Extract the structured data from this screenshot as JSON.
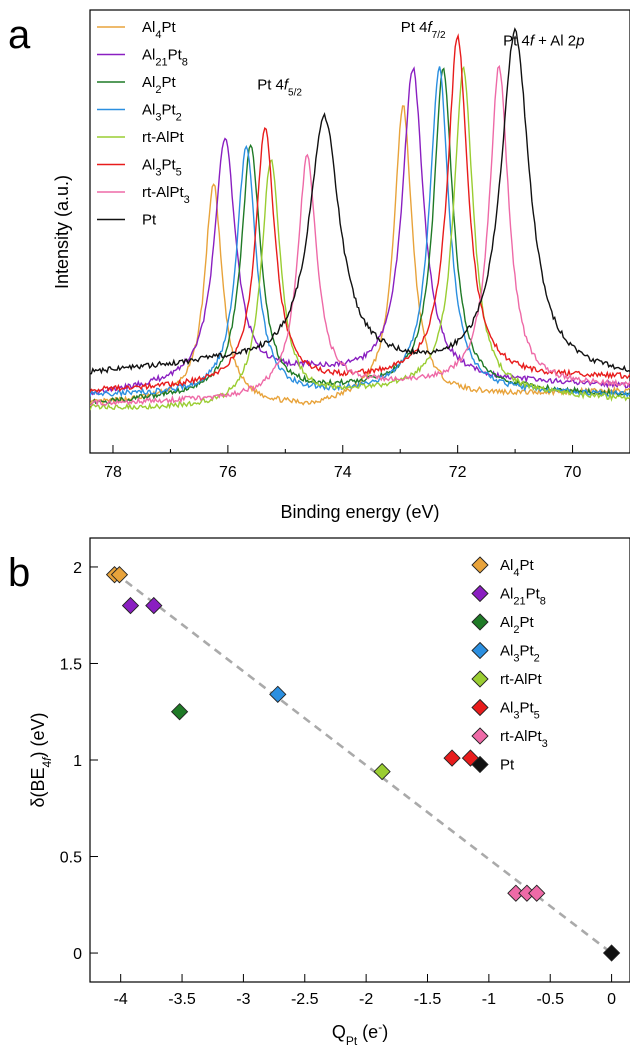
{
  "chart_data": [
    {
      "panel": "a",
      "type": "line",
      "title": "",
      "xlabel": "Binding energy (eV)",
      "ylabel": "Intensity (a.u.)",
      "xlim": [
        78.4,
        69.0
      ],
      "x_reversed": true,
      "xticks": [
        78,
        76,
        74,
        72,
        70
      ],
      "y_units": "normalized intensity (0 = bottom of frame, 1 = top of frame)",
      "grid": false,
      "legend_position": "top-left",
      "annotations": [
        {
          "text": "Pt 4f + Al 2p",
          "base": "Pt 4",
          "italic": "f",
          "rest": " + Al 2",
          "italic2": "p",
          "x": 70.5,
          "y": 0.92
        },
        {
          "text": "Pt 4f5/2",
          "base": "Pt 4",
          "italic": "f",
          "sub": "5/2",
          "x": 75.1,
          "y": 0.82
        },
        {
          "text": "Pt 4f7/2",
          "base": "Pt 4",
          "italic": "f",
          "sub": "7/2",
          "x": 72.6,
          "y": 0.95
        }
      ],
      "series": [
        {
          "name": "Al4Pt",
          "base": "Al",
          "s1": "4",
          "mid": "Pt",
          "s2": "",
          "color": "#e8a33b",
          "peaks": [
            {
              "x": 76.25,
              "h": 0.49,
              "w": 0.18
            },
            {
              "x": 72.95,
              "h": 0.66,
              "w": 0.19
            }
          ],
          "baseline": [
            [
              78.4,
              0.11
            ],
            [
              76.8,
              0.12
            ],
            [
              74.6,
              0.1
            ],
            [
              73.6,
              0.12
            ],
            [
              69.0,
              0.14
            ]
          ]
        },
        {
          "name": "Al21Pt8",
          "base": "Al",
          "s1": "21",
          "mid": "Pt",
          "s2": "8",
          "color": "#8a1fc1",
          "peaks": [
            {
              "x": 76.05,
              "h": 0.55,
              "w": 0.22
            },
            {
              "x": 72.78,
              "h": 0.7,
              "w": 0.22
            }
          ],
          "baseline": [
            [
              78.4,
              0.13
            ],
            [
              77.0,
              0.15
            ],
            [
              74.6,
              0.18
            ],
            [
              73.6,
              0.17
            ],
            [
              69.0,
              0.15
            ]
          ]
        },
        {
          "name": "Al2Pt",
          "base": "Al",
          "s1": "2",
          "mid": "Pt",
          "s2": "",
          "color": "#1f7a26",
          "peaks": [
            {
              "x": 75.6,
              "h": 0.56,
              "w": 0.2
            },
            {
              "x": 72.25,
              "h": 0.72,
              "w": 0.2
            }
          ],
          "baseline": [
            [
              78.4,
              0.11
            ],
            [
              76.4,
              0.13
            ],
            [
              74.2,
              0.14
            ],
            [
              73.0,
              0.15
            ],
            [
              69.0,
              0.13
            ]
          ]
        },
        {
          "name": "Al3Pt2",
          "base": "Al",
          "s1": "3",
          "mid": "Pt",
          "s2": "2",
          "color": "#2b8fe0",
          "peaks": [
            {
              "x": 75.68,
              "h": 0.56,
              "w": 0.2
            },
            {
              "x": 72.32,
              "h": 0.73,
              "w": 0.2
            }
          ],
          "baseline": [
            [
              78.4,
              0.13
            ],
            [
              76.4,
              0.13
            ],
            [
              74.2,
              0.13
            ],
            [
              73.0,
              0.14
            ],
            [
              69.0,
              0.13
            ]
          ]
        },
        {
          "name": "rt-AlPt",
          "base": "rt-AlPt",
          "s1": "",
          "mid": "",
          "s2": "",
          "color": "#9acd32",
          "peaks": [
            {
              "x": 75.25,
              "h": 0.55,
              "w": 0.2
            },
            {
              "x": 71.9,
              "h": 0.73,
              "w": 0.2
            }
          ],
          "baseline": [
            [
              78.4,
              0.1
            ],
            [
              76.0,
              0.1
            ],
            [
              74.0,
              0.13
            ],
            [
              72.8,
              0.14
            ],
            [
              69.0,
              0.12
            ]
          ]
        },
        {
          "name": "Al3Pt5",
          "base": "Al",
          "s1": "3",
          "mid": "Pt",
          "s2": "5",
          "color": "#e81c1c",
          "peaks": [
            {
              "x": 75.35,
              "h": 0.58,
              "w": 0.2
            },
            {
              "x": 72.0,
              "h": 0.77,
              "w": 0.21
            }
          ],
          "baseline": [
            [
              78.4,
              0.14
            ],
            [
              76.0,
              0.15
            ],
            [
              74.0,
              0.16
            ],
            [
              72.8,
              0.17
            ],
            [
              69.0,
              0.17
            ]
          ]
        },
        {
          "name": "rt-AlPt3",
          "base": "rt-AlPt",
          "s1": "",
          "mid": "",
          "s2": "3",
          "color": "#ee6aa7",
          "peaks": [
            {
              "x": 74.62,
              "h": 0.53,
              "w": 0.2
            },
            {
              "x": 71.28,
              "h": 0.72,
              "w": 0.2
            }
          ],
          "baseline": [
            [
              78.4,
              0.11
            ],
            [
              75.8,
              0.12
            ],
            [
              73.6,
              0.15
            ],
            [
              72.2,
              0.15
            ],
            [
              69.0,
              0.15
            ]
          ]
        },
        {
          "name": "Pt",
          "base": "Pt",
          "s1": "",
          "mid": "",
          "s2": "",
          "color": "#111111",
          "peaks": [
            {
              "x": 74.32,
              "h": 0.56,
              "w": 0.32
            },
            {
              "x": 71.0,
              "h": 0.77,
              "w": 0.3
            }
          ],
          "baseline": [
            [
              78.4,
              0.18
            ],
            [
              76.2,
              0.2
            ],
            [
              73.4,
              0.19
            ],
            [
              72.2,
              0.18
            ],
            [
              69.0,
              0.17
            ]
          ]
        }
      ]
    },
    {
      "panel": "b",
      "type": "scatter",
      "title": "",
      "xlabel": "QPt (e-)",
      "xlabel_parts": {
        "base": "Q",
        "sub": "Pt",
        "rest": " (e",
        "sup": "-",
        "end": ")"
      },
      "ylabel": "δ(BE4f) (eV)",
      "ylabel_parts": {
        "base": "δ(BE",
        "sub": "4",
        "subitalic": "f",
        "end": ") (eV)"
      },
      "xlim": [
        -4.25,
        0.15
      ],
      "ylim": [
        -0.15,
        2.15
      ],
      "xticks": [
        -4,
        -3.5,
        -3,
        -2.5,
        -2,
        -1.5,
        -1,
        -0.5,
        0
      ],
      "xtick_labels": [
        "-4",
        "-3.5",
        "-3",
        "-2.5",
        "-2",
        "-1.5",
        "-1",
        "-0.5",
        "0"
      ],
      "yticks": [
        0,
        0.5,
        1,
        1.5,
        2
      ],
      "ytick_labels": [
        "0",
        "0.5",
        "1",
        "1.5",
        "2"
      ],
      "grid": false,
      "legend_position": "top-right",
      "fit_line": {
        "x": [
          -4.05,
          0.0
        ],
        "y": [
          1.97,
          0.0
        ],
        "color": "#aaaaaa",
        "style": "dashed"
      },
      "series": [
        {
          "name": "Al4Pt",
          "base": "Al",
          "s1": "4",
          "mid": "Pt",
          "s2": "",
          "color": "#e8a33b",
          "x": [
            -4.05,
            -4.01
          ],
          "y": [
            1.96,
            1.96
          ]
        },
        {
          "name": "Al21Pt8",
          "base": "Al",
          "s1": "21",
          "mid": "Pt",
          "s2": "8",
          "color": "#8a1fc1",
          "x": [
            -3.92,
            -3.73
          ],
          "y": [
            1.8,
            1.8
          ]
        },
        {
          "name": "Al2Pt",
          "base": "Al",
          "s1": "2",
          "mid": "Pt",
          "s2": "",
          "color": "#1f7a26",
          "x": [
            -3.52
          ],
          "y": [
            1.25
          ]
        },
        {
          "name": "Al3Pt2",
          "base": "Al",
          "s1": "3",
          "mid": "Pt",
          "s2": "2",
          "color": "#2b8fe0",
          "x": [
            -2.72
          ],
          "y": [
            1.34
          ]
        },
        {
          "name": "rt-AlPt",
          "base": "rt-AlPt",
          "s1": "",
          "mid": "",
          "s2": "",
          "color": "#9acd32",
          "x": [
            -1.87
          ],
          "y": [
            0.94
          ]
        },
        {
          "name": "Al3Pt5",
          "base": "Al",
          "s1": "3",
          "mid": "Pt",
          "s2": "5",
          "color": "#e81c1c",
          "x": [
            -1.3,
            -1.15
          ],
          "y": [
            1.01,
            1.01
          ]
        },
        {
          "name": "rt-AlPt3",
          "base": "rt-AlPt",
          "s1": "",
          "mid": "",
          "s2": "3",
          "color": "#ee6aa7",
          "x": [
            -0.78,
            -0.69,
            -0.61
          ],
          "y": [
            0.31,
            0.31,
            0.31
          ]
        },
        {
          "name": "Pt",
          "base": "Pt",
          "s1": "",
          "mid": "",
          "s2": "",
          "color": "#111111",
          "x": [
            0.0
          ],
          "y": [
            0.0
          ]
        }
      ]
    }
  ]
}
